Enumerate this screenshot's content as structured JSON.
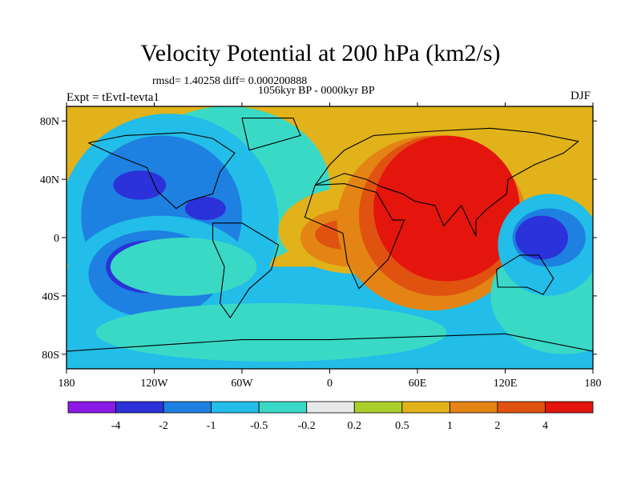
{
  "header": {
    "title": "Velocity Potential at 200 hPa (km2/s)",
    "stats": "rmsd= 1.40258 diff= 0.000200888",
    "period": "1056kyr BP - 0000kyr BP",
    "left_label": "Expt = tEvtI-tevta1",
    "right_label": "DJF"
  },
  "chart_data": {
    "type": "heatmap",
    "title": "Velocity Potential at 200 hPa (km2/s)",
    "x_ticks": [
      {
        "value": -180,
        "label": "180"
      },
      {
        "value": -120,
        "label": "120W"
      },
      {
        "value": -60,
        "label": "60W"
      },
      {
        "value": 0,
        "label": "0"
      },
      {
        "value": 60,
        "label": "60E"
      },
      {
        "value": 120,
        "label": "120E"
      },
      {
        "value": 180,
        "label": "180"
      }
    ],
    "y_ticks": [
      {
        "value": 80,
        "label": "80N"
      },
      {
        "value": 40,
        "label": "40N"
      },
      {
        "value": 0,
        "label": "0"
      },
      {
        "value": -40,
        "label": "40S"
      },
      {
        "value": -80,
        "label": "80S"
      }
    ],
    "xlim": [
      -180,
      180
    ],
    "ylim": [
      -90,
      90
    ],
    "colorbar": {
      "colors": [
        "#8c1ae6",
        "#2b32d9",
        "#1e80e0",
        "#22bde8",
        "#3ad9c6",
        "#e8e8e8",
        "#aacf2b",
        "#e1b21a",
        "#e38414",
        "#e0520f",
        "#e3150d"
      ],
      "labels": [
        "-4",
        "-2",
        "-1",
        "-0.5",
        "-0.2",
        "0.2",
        "0.5",
        "1",
        "2",
        "4"
      ]
    },
    "regions": [
      {
        "level": -0.2,
        "lon": -70,
        "lat": 35,
        "rx": 70,
        "ry": 55,
        "rot": 0
      },
      {
        "level": -0.5,
        "lon": -110,
        "lat": 10,
        "rx": 75,
        "ry": 75,
        "rot": 0
      },
      {
        "level": -1,
        "lon": -115,
        "lat": 15,
        "rx": 55,
        "ry": 55,
        "rot": 0
      },
      {
        "level": -2,
        "lon": -130,
        "lat": 36,
        "rx": 18,
        "ry": 10,
        "rot": 0
      },
      {
        "level": -2,
        "lon": -85,
        "lat": 20,
        "rx": 14,
        "ry": 8,
        "rot": 0
      },
      {
        "level": -0.5,
        "lon": -115,
        "lat": -30,
        "rx": 65,
        "ry": 45,
        "rot": 0
      },
      {
        "level": -1,
        "lon": -120,
        "lat": -25,
        "rx": 45,
        "ry": 30,
        "rot": 0
      },
      {
        "level": -2,
        "lon": -125,
        "lat": -20,
        "rx": 28,
        "ry": 18,
        "rot": 0
      },
      {
        "level": -0.2,
        "lon": -40,
        "lat": -65,
        "rx": 120,
        "ry": 20,
        "rot": 0
      },
      {
        "level": -0.2,
        "lon": 40,
        "lat": 60,
        "rx": 30,
        "ry": 12,
        "rot": 0
      },
      {
        "level": -0.2,
        "lon": -100,
        "lat": -20,
        "rx": 50,
        "ry": 20,
        "rot": 0
      },
      {
        "level": 0.5,
        "lon": 20,
        "lat": 5,
        "rx": 55,
        "ry": 30,
        "rot": 0
      },
      {
        "level": 1,
        "lon": 15,
        "lat": 0,
        "rx": 35,
        "ry": 20,
        "rot": 0
      },
      {
        "level": 2,
        "lon": 10,
        "lat": 2,
        "rx": 20,
        "ry": 10,
        "rot": 0
      },
      {
        "level": 0.5,
        "lon": 65,
        "lat": 60,
        "rx": 70,
        "ry": 25,
        "rot": 0
      },
      {
        "level": 1,
        "lon": 70,
        "lat": 10,
        "rx": 65,
        "ry": 60,
        "rot": 0
      },
      {
        "level": 2,
        "lon": 75,
        "lat": 15,
        "rx": 55,
        "ry": 55,
        "rot": 0
      },
      {
        "level": 4,
        "lon": 80,
        "lat": 20,
        "rx": 50,
        "ry": 50,
        "rot": 0
      },
      {
        "level": -0.2,
        "lon": 160,
        "lat": -40,
        "rx": 50,
        "ry": 40,
        "rot": 0
      },
      {
        "level": -0.5,
        "lon": 150,
        "lat": -5,
        "rx": 35,
        "ry": 35,
        "rot": 0
      },
      {
        "level": -1,
        "lon": 150,
        "lat": 0,
        "rx": 25,
        "ry": 20,
        "rot": 0
      },
      {
        "level": -2,
        "lon": 145,
        "lat": 0,
        "rx": 18,
        "ry": 15,
        "rot": 0
      }
    ]
  }
}
